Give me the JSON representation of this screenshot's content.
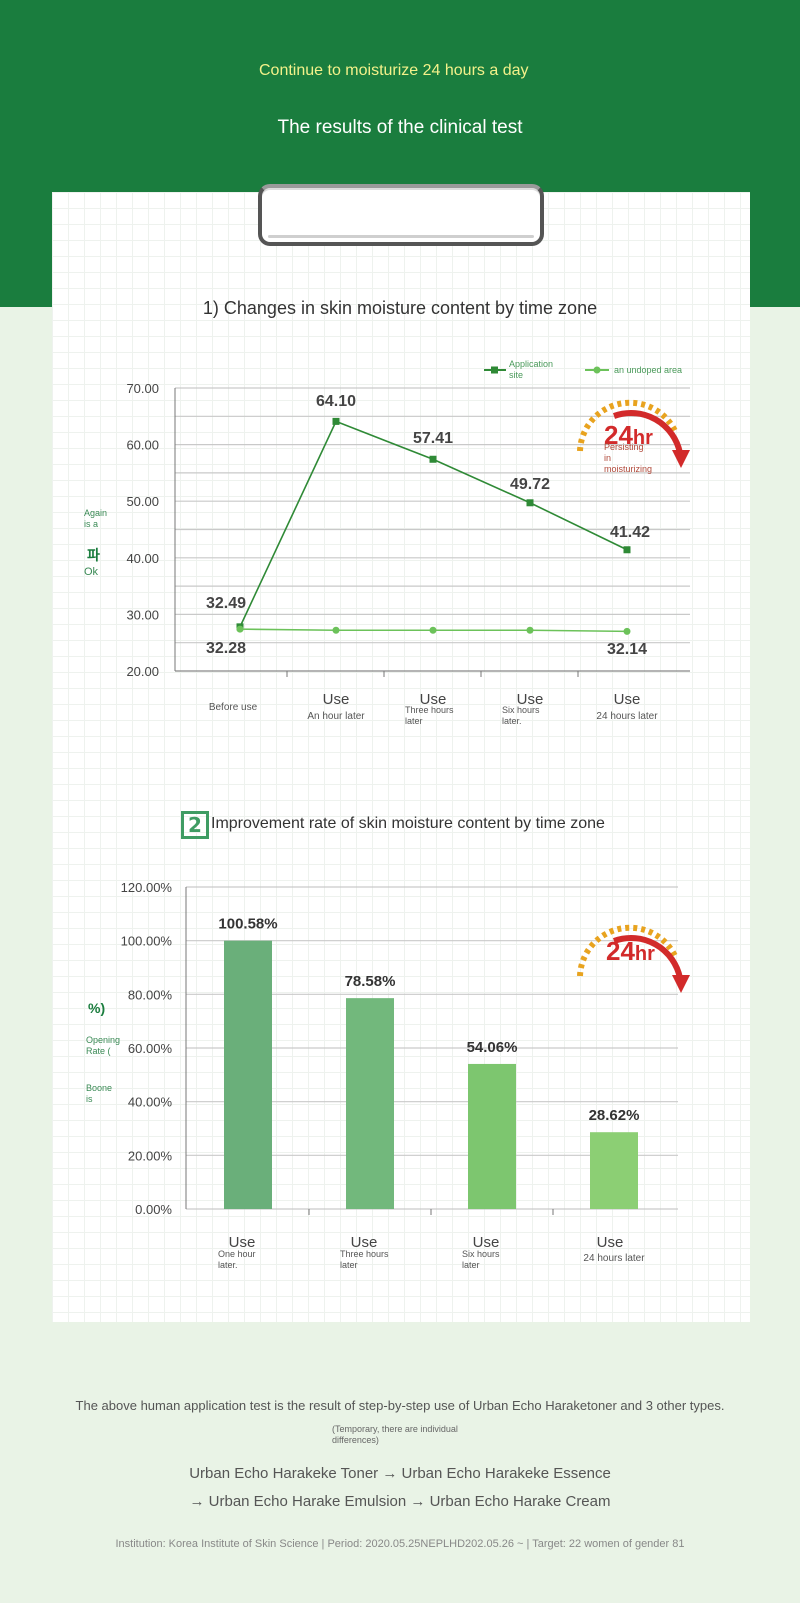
{
  "header": {
    "line1": "Continue to moisturize 24 hours a day",
    "line2": "The results of the clinical test"
  },
  "chart1": {
    "title": "1) Changes in skin moisture content by time zone",
    "side_note": "Again is a",
    "side_big": "파",
    "side_ok": "Ok",
    "badge_text": "24hr",
    "badge_note": "Persisting in moisturizing",
    "chart_data": {
      "type": "line",
      "ylim": [
        20,
        70
      ],
      "yticks": [
        "20.00",
        "30.00",
        "40.00",
        "50.00",
        "60.00",
        "70.00"
      ],
      "categories": [
        {
          "line1": "",
          "line2": "Before use"
        },
        {
          "line1": "Use",
          "line2": "An hour later"
        },
        {
          "line1": "Use",
          "line2": "Three hours later"
        },
        {
          "line1": "Use",
          "line2": "Six hours later."
        },
        {
          "line1": "Use",
          "line2": "24 hours later"
        }
      ],
      "series": [
        {
          "name": "Application site",
          "color": "#2f8a36",
          "values": [
            32.49,
            64.1,
            57.41,
            49.72,
            41.42
          ],
          "plot_values": [
            27.8,
            64.1,
            57.41,
            49.72,
            41.42
          ],
          "labels": [
            "32.49",
            "64.10",
            "57.41",
            "49.72",
            "41.42"
          ]
        },
        {
          "name": "an undoped area",
          "color": "#6cc25a",
          "values": [
            32.28,
            null,
            null,
            null,
            32.14
          ],
          "plot_values": [
            27.4,
            27.2,
            27.2,
            27.2,
            27.0
          ],
          "labels": [
            "32.28",
            "",
            "",
            "",
            "32.14"
          ]
        }
      ]
    }
  },
  "chart2": {
    "title": "Improvement rate of skin moisture content by time zone",
    "number": "2",
    "axis_note_symbol": "%)",
    "axis_note": "Opening Rate (",
    "axis_note2": "Boone is",
    "badge_text": "24hr",
    "chart_data": {
      "type": "bar",
      "ylim": [
        0,
        120
      ],
      "yticks": [
        "0.00%",
        "20.00%",
        "40.00%",
        "60.00%",
        "80.00%",
        "100.00%",
        "120.00%"
      ],
      "categories": [
        {
          "line1": "Use",
          "line2": "One hour later."
        },
        {
          "line1": "Use",
          "line2": "Three hours later"
        },
        {
          "line1": "Use",
          "line2": "Six hours later"
        },
        {
          "line1": "Use",
          "line2": "24 hours later"
        }
      ],
      "values": [
        100.58,
        78.58,
        54.06,
        28.62
      ],
      "plot_values": [
        100,
        78.58,
        54.06,
        28.62
      ],
      "labels": [
        "100.58%",
        "78.58%",
        "54.06%",
        "28.62%"
      ],
      "colors": [
        "#6aaf7a",
        "#72b87c",
        "#7dc66f",
        "#8ccf74"
      ]
    }
  },
  "footer": {
    "line1": "The above human application test is the result of step-by-step use of Urban Echo Haraketoner and 3 other types.",
    "small": "(Temporary, there are individual differences)",
    "line3": "Urban Echo Harakeke Toner → Urban Echo Harakeke Essence",
    "line4": "→ Urban Echo Harake Emulsion → Urban Echo Harake Cream",
    "line5": "Institution: Korea Institute of Skin Science | Period: 2020.05.25NEPLHD202.05.26 ~ | Target: 22 women of gender 81"
  }
}
